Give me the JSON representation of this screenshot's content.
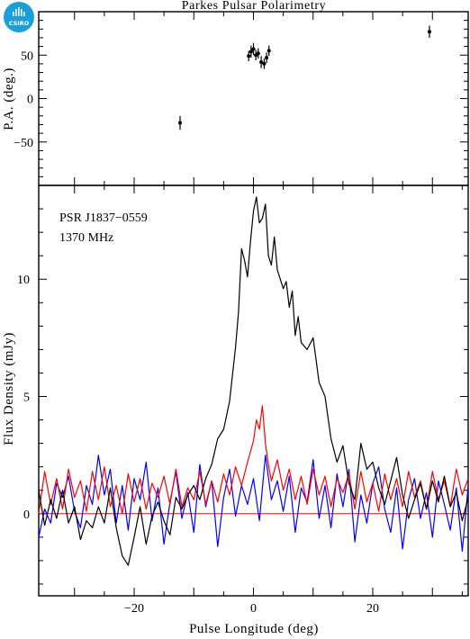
{
  "title": "Parkes Pulsar Polarimetry",
  "logo_text": "CSIRO",
  "colors": {
    "total_intensity": "#000000",
    "linear": "#ff0000",
    "circular": "#0000ff",
    "logo": "#1aa0d8"
  },
  "chart_data": [
    {
      "type": "scatter",
      "panel": "top",
      "ylabel": "P.A. (deg.)",
      "xlim": [
        -36,
        36
      ],
      "ylim": [
        -100,
        100
      ],
      "yticks": [
        -50,
        0,
        50
      ],
      "series": [
        {
          "points": [
            {
              "x": -12.3,
              "y": -28,
              "err": 8
            },
            {
              "x": -0.8,
              "y": 49,
              "err": 6
            },
            {
              "x": -0.4,
              "y": 54,
              "err": 7
            },
            {
              "x": 0.0,
              "y": 57,
              "err": 7
            },
            {
              "x": 0.4,
              "y": 50,
              "err": 6
            },
            {
              "x": 0.8,
              "y": 52,
              "err": 6
            },
            {
              "x": 1.3,
              "y": 42,
              "err": 7
            },
            {
              "x": 1.8,
              "y": 40,
              "err": 6
            },
            {
              "x": 2.2,
              "y": 47,
              "err": 6
            },
            {
              "x": 2.6,
              "y": 55,
              "err": 6
            },
            {
              "x": 29.5,
              "y": 77,
              "err": 7
            }
          ]
        }
      ]
    },
    {
      "type": "line",
      "panel": "bottom",
      "xlabel": "Pulse Longitude (deg)",
      "ylabel": "Flux Density (mJy)",
      "xlim": [
        -36,
        36
      ],
      "ylim": [
        -3.5,
        14
      ],
      "xticks": [
        -20,
        0,
        20
      ],
      "yticks": [
        0,
        5,
        10
      ],
      "annotations": [
        "PSR J1837−0559",
        "1370 MHz"
      ],
      "series": [
        {
          "key": "total",
          "color": "#000000",
          "points": [
            [
              -36,
              1.0
            ],
            [
              -35,
              -0.5
            ],
            [
              -34,
              0.6
            ],
            [
              -33,
              -0.2
            ],
            [
              -32,
              1.0
            ],
            [
              -31,
              -0.4
            ],
            [
              -30,
              0.3
            ],
            [
              -29,
              -1.1
            ],
            [
              -28,
              -0.3
            ],
            [
              -27,
              -0.6
            ],
            [
              -26,
              0.3
            ],
            [
              -25,
              -0.4
            ],
            [
              -24,
              1.1
            ],
            [
              -23,
              -0.6
            ],
            [
              -22,
              -1.8
            ],
            [
              -21,
              -2.2
            ],
            [
              -20,
              -1.0
            ],
            [
              -19,
              0.3
            ],
            [
              -18,
              -1.3
            ],
            [
              -17,
              -0.1
            ],
            [
              -16,
              0.5
            ],
            [
              -15,
              -0.3
            ],
            [
              -14,
              -0.9
            ],
            [
              -13,
              0.7
            ],
            [
              -12,
              0.2
            ],
            [
              -11,
              0.8
            ],
            [
              -10,
              1.2
            ],
            [
              -9,
              0.6
            ],
            [
              -8,
              1.5
            ],
            [
              -7,
              2.1
            ],
            [
              -6,
              3.2
            ],
            [
              -5,
              3.6
            ],
            [
              -4,
              4.8
            ],
            [
              -3,
              7.1
            ],
            [
              -2.5,
              8.6
            ],
            [
              -2,
              11.3
            ],
            [
              -1.5,
              10.8
            ],
            [
              -1,
              10.1
            ],
            [
              -0.5,
              11.6
            ],
            [
              0,
              12.9
            ],
            [
              0.5,
              13.5
            ],
            [
              1,
              12.4
            ],
            [
              1.5,
              12.6
            ],
            [
              2,
              13.2
            ],
            [
              2.5,
              11.0
            ],
            [
              3,
              10.6
            ],
            [
              3.5,
              11.8
            ],
            [
              4,
              10.4
            ],
            [
              4.5,
              10.0
            ],
            [
              5,
              9.6
            ],
            [
              5.5,
              9.9
            ],
            [
              6,
              8.8
            ],
            [
              6.5,
              9.5
            ],
            [
              7,
              7.6
            ],
            [
              7.5,
              8.4
            ],
            [
              8,
              7.3
            ],
            [
              9,
              7.0
            ],
            [
              10,
              7.5
            ],
            [
              11,
              5.6
            ],
            [
              12,
              5.0
            ],
            [
              13,
              3.2
            ],
            [
              14,
              2.2
            ],
            [
              15,
              2.9
            ],
            [
              16,
              1.3
            ],
            [
              17,
              0.6
            ],
            [
              18,
              3.0
            ],
            [
              19,
              1.9
            ],
            [
              20,
              2.2
            ],
            [
              21,
              1.1
            ],
            [
              22,
              0.4
            ],
            [
              23,
              1.4
            ],
            [
              24,
              2.4
            ],
            [
              25,
              0.8
            ],
            [
              26,
              -0.2
            ],
            [
              27,
              0.6
            ],
            [
              28,
              1.3
            ],
            [
              29,
              0.2
            ],
            [
              30,
              1.4
            ],
            [
              31,
              0.5
            ],
            [
              32,
              1.6
            ],
            [
              33,
              0.3
            ],
            [
              34,
              0.9
            ],
            [
              35,
              -0.3
            ],
            [
              36,
              0.7
            ]
          ]
        },
        {
          "key": "linear",
          "color": "#ff0000",
          "points": [
            [
              -36,
              0.0
            ],
            [
              -35,
              1.8
            ],
            [
              -34,
              0.4
            ],
            [
              -33,
              1.5
            ],
            [
              -32,
              0.2
            ],
            [
              -31,
              1.9
            ],
            [
              -30,
              0.7
            ],
            [
              -29,
              1.4
            ],
            [
              -28,
              0.1
            ],
            [
              -27,
              1.8
            ],
            [
              -26,
              0.6
            ],
            [
              -25,
              2.0
            ],
            [
              -24,
              0.3
            ],
            [
              -23,
              1.2
            ],
            [
              -22,
              0.0
            ],
            [
              -21,
              1.7
            ],
            [
              -20,
              0.5
            ],
            [
              -19,
              1.5
            ],
            [
              -18,
              0.2
            ],
            [
              -17,
              1.3
            ],
            [
              -16,
              0.7
            ],
            [
              -15,
              1.6
            ],
            [
              -14,
              0.4
            ],
            [
              -13,
              1.9
            ],
            [
              -12,
              0.3
            ],
            [
              -11,
              1.1
            ],
            [
              -10,
              0.6
            ],
            [
              -9,
              1.8
            ],
            [
              -8,
              0.4
            ],
            [
              -7,
              1.4
            ],
            [
              -6,
              0.5
            ],
            [
              -5,
              1.7
            ],
            [
              -4,
              0.8
            ],
            [
              -3,
              2.0
            ],
            [
              -2,
              1.2
            ],
            [
              -1,
              2.2
            ],
            [
              0,
              3.1
            ],
            [
              0.5,
              4.0
            ],
            [
              1,
              3.6
            ],
            [
              1.5,
              4.6
            ],
            [
              2,
              3.0
            ],
            [
              2.5,
              2.1
            ],
            [
              3,
              1.4
            ],
            [
              4,
              2.3
            ],
            [
              5,
              1.0
            ],
            [
              6,
              1.9
            ],
            [
              7,
              0.6
            ],
            [
              8,
              1.6
            ],
            [
              9,
              0.4
            ],
            [
              10,
              1.9
            ],
            [
              11,
              0.8
            ],
            [
              12,
              1.6
            ],
            [
              13,
              0.3
            ],
            [
              14,
              1.5
            ],
            [
              15,
              0.9
            ],
            [
              16,
              1.7
            ],
            [
              17,
              0.2
            ],
            [
              18,
              1.8
            ],
            [
              19,
              0.5
            ],
            [
              20,
              1.3
            ],
            [
              21,
              0.1
            ],
            [
              22,
              1.7
            ],
            [
              23,
              0.6
            ],
            [
              24,
              1.5
            ],
            [
              25,
              0.3
            ],
            [
              26,
              1.8
            ],
            [
              27,
              0.7
            ],
            [
              28,
              1.4
            ],
            [
              29,
              0.2
            ],
            [
              30,
              1.8
            ],
            [
              31,
              0.6
            ],
            [
              32,
              1.4
            ],
            [
              33,
              0.3
            ],
            [
              34,
              1.9
            ],
            [
              35,
              0.8
            ],
            [
              36,
              1.5
            ]
          ]
        },
        {
          "key": "circular",
          "color": "#0000ff",
          "points": [
            [
              -36,
              -1.0
            ],
            [
              -35,
              0.2
            ],
            [
              -34,
              -0.4
            ],
            [
              -33,
              1.3
            ],
            [
              -32,
              0.7
            ],
            [
              -31,
              1.6
            ],
            [
              -30,
              0.1
            ],
            [
              -29,
              -0.6
            ],
            [
              -28,
              1.2
            ],
            [
              -27,
              0.4
            ],
            [
              -26,
              2.5
            ],
            [
              -25,
              0.8
            ],
            [
              -24,
              1.9
            ],
            [
              -23,
              -0.4
            ],
            [
              -22,
              1.2
            ],
            [
              -21,
              -0.7
            ],
            [
              -20,
              1.5
            ],
            [
              -19,
              0.6
            ],
            [
              -18,
              2.2
            ],
            [
              -17,
              -0.3
            ],
            [
              -16,
              1.1
            ],
            [
              -15,
              -1.3
            ],
            [
              -14,
              0.5
            ],
            [
              -13,
              1.8
            ],
            [
              -12,
              -0.2
            ],
            [
              -11,
              0.9
            ],
            [
              -10,
              -0.8
            ],
            [
              -9,
              2.1
            ],
            [
              -8,
              0.3
            ],
            [
              -7,
              1.4
            ],
            [
              -6,
              -1.4
            ],
            [
              -5,
              0.7
            ],
            [
              -4,
              1.9
            ],
            [
              -3,
              -0.1
            ],
            [
              -2,
              1.2
            ],
            [
              -1,
              0.4
            ],
            [
              0,
              1.5
            ],
            [
              1,
              -0.3
            ],
            [
              2,
              2.5
            ],
            [
              3,
              0.6
            ],
            [
              4,
              1.4
            ],
            [
              5,
              0.1
            ],
            [
              6,
              1.6
            ],
            [
              7,
              -0.8
            ],
            [
              8,
              1.1
            ],
            [
              9,
              0.5
            ],
            [
              10,
              2.3
            ],
            [
              11,
              -0.2
            ],
            [
              12,
              1.2
            ],
            [
              13,
              -0.6
            ],
            [
              14,
              1.7
            ],
            [
              15,
              0.3
            ],
            [
              16,
              1.9
            ],
            [
              17,
              -1.2
            ],
            [
              18,
              0.8
            ],
            [
              19,
              -0.4
            ],
            [
              20,
              1.3
            ],
            [
              21,
              2.0
            ],
            [
              22,
              0.2
            ],
            [
              23,
              -0.8
            ],
            [
              24,
              1.1
            ],
            [
              25,
              -1.5
            ],
            [
              26,
              0.6
            ],
            [
              27,
              1.5
            ],
            [
              28,
              -0.2
            ],
            [
              29,
              0.9
            ],
            [
              30,
              -1.0
            ],
            [
              31,
              1.4
            ],
            [
              32,
              0.4
            ],
            [
              33,
              -0.7
            ],
            [
              34,
              1.1
            ],
            [
              35,
              -1.6
            ],
            [
              36,
              1.2
            ]
          ]
        }
      ]
    }
  ]
}
